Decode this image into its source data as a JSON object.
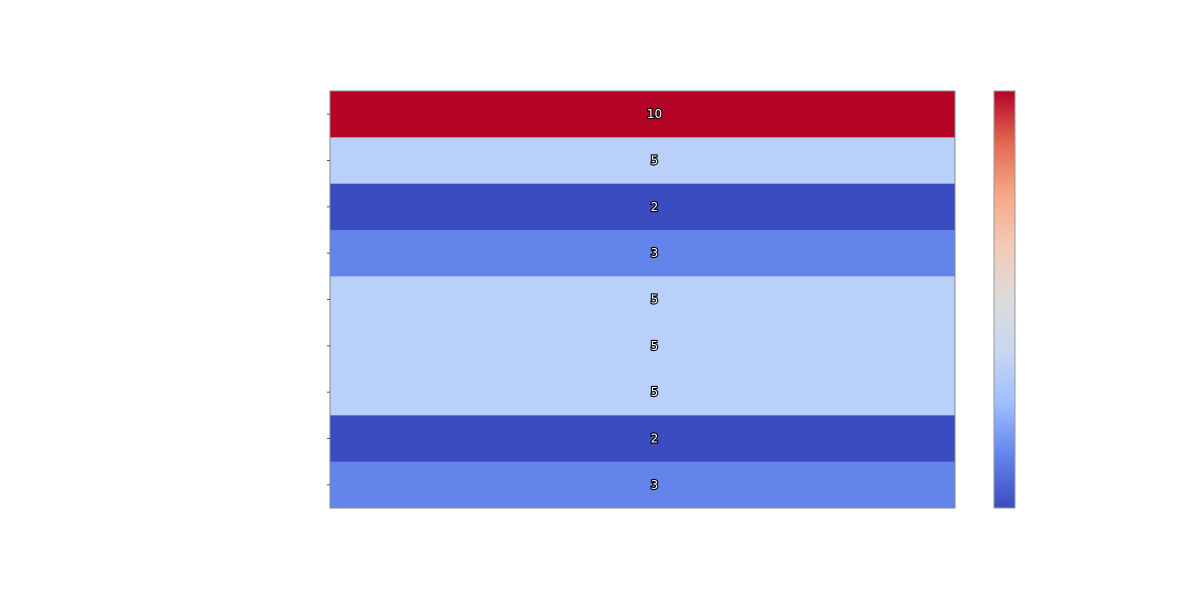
{
  "chart_data": {
    "type": "heatmap",
    "title": "",
    "xlabel": "",
    "ylabel": "",
    "rows": 9,
    "columns": 1,
    "values": [
      10,
      5,
      2,
      3,
      5,
      5,
      5,
      2,
      3
    ],
    "annotations": [
      "10",
      "5",
      "2",
      "3",
      "5",
      "5",
      "5",
      "2",
      "3"
    ],
    "colormap": "coolwarm",
    "cell_colors": [
      "#b40426",
      "#b9d0f9",
      "#3b4cc0",
      "#6384eb",
      "#b9d0f9",
      "#b9d0f9",
      "#b9d0f9",
      "#3b4cc0",
      "#6384eb"
    ],
    "colorbar": {
      "min": 2,
      "max": 10,
      "stops": [
        "#3b4cc0",
        "#6384eb",
        "#9ebeff",
        "#c9d7f0",
        "#dddcdc",
        "#f2cbb7",
        "#f7a889",
        "#e26952",
        "#b40426"
      ],
      "tick_labels_visible": false
    },
    "grid": false,
    "legend": "colorbar-right"
  }
}
